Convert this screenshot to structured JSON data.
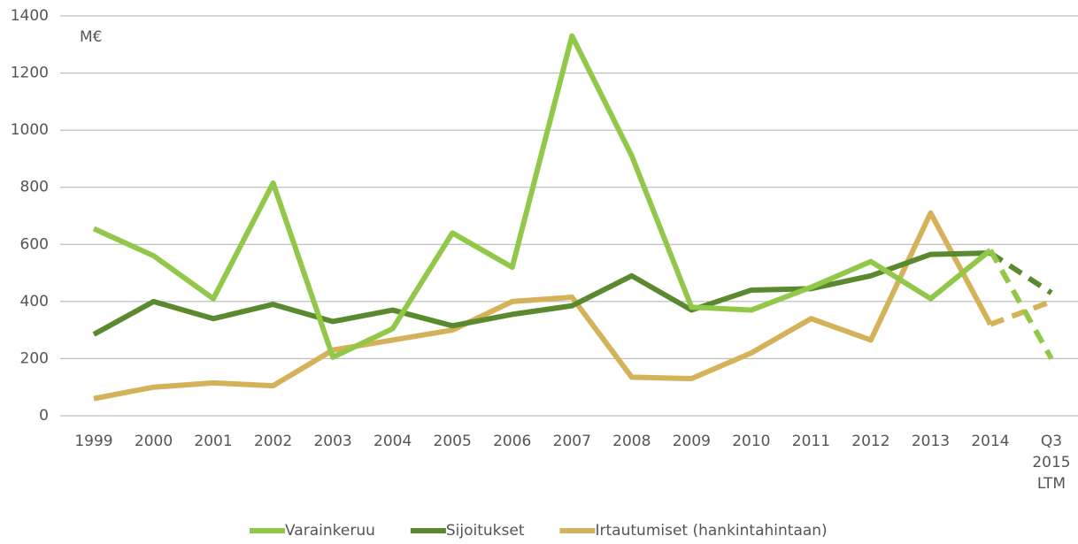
{
  "chart_data": {
    "type": "line",
    "annotation": "M€",
    "categories": [
      "1999",
      "2000",
      "2001",
      "2002",
      "2003",
      "2004",
      "2005",
      "2006",
      "2007",
      "2008",
      "2009",
      "2010",
      "2011",
      "2012",
      "2013",
      "2014",
      "Q3 2015 LTM"
    ],
    "series": [
      {
        "name": "Varainkeruu",
        "color": "#92c84a",
        "values": [
          655,
          560,
          410,
          815,
          205,
          305,
          640,
          520,
          1330,
          910,
          380,
          370,
          450,
          540,
          410,
          580,
          200
        ]
      },
      {
        "name": "Sijoitukset",
        "color": "#5b8a2e",
        "values": [
          285,
          400,
          340,
          390,
          330,
          370,
          315,
          355,
          385,
          490,
          370,
          440,
          445,
          490,
          565,
          570,
          430
        ]
      },
      {
        "name": "Irtautumiset (hankintahintaan)",
        "color": "#d4b25a",
        "values": [
          60,
          100,
          115,
          105,
          230,
          265,
          300,
          400,
          415,
          135,
          130,
          220,
          340,
          265,
          710,
          320,
          400
        ]
      }
    ],
    "ylim": [
      0,
      1400
    ],
    "yticks": [
      0,
      200,
      400,
      600,
      800,
      1000,
      1200,
      1400
    ],
    "grid": true,
    "dashed_last_segment": true,
    "legend": "bottom"
  }
}
